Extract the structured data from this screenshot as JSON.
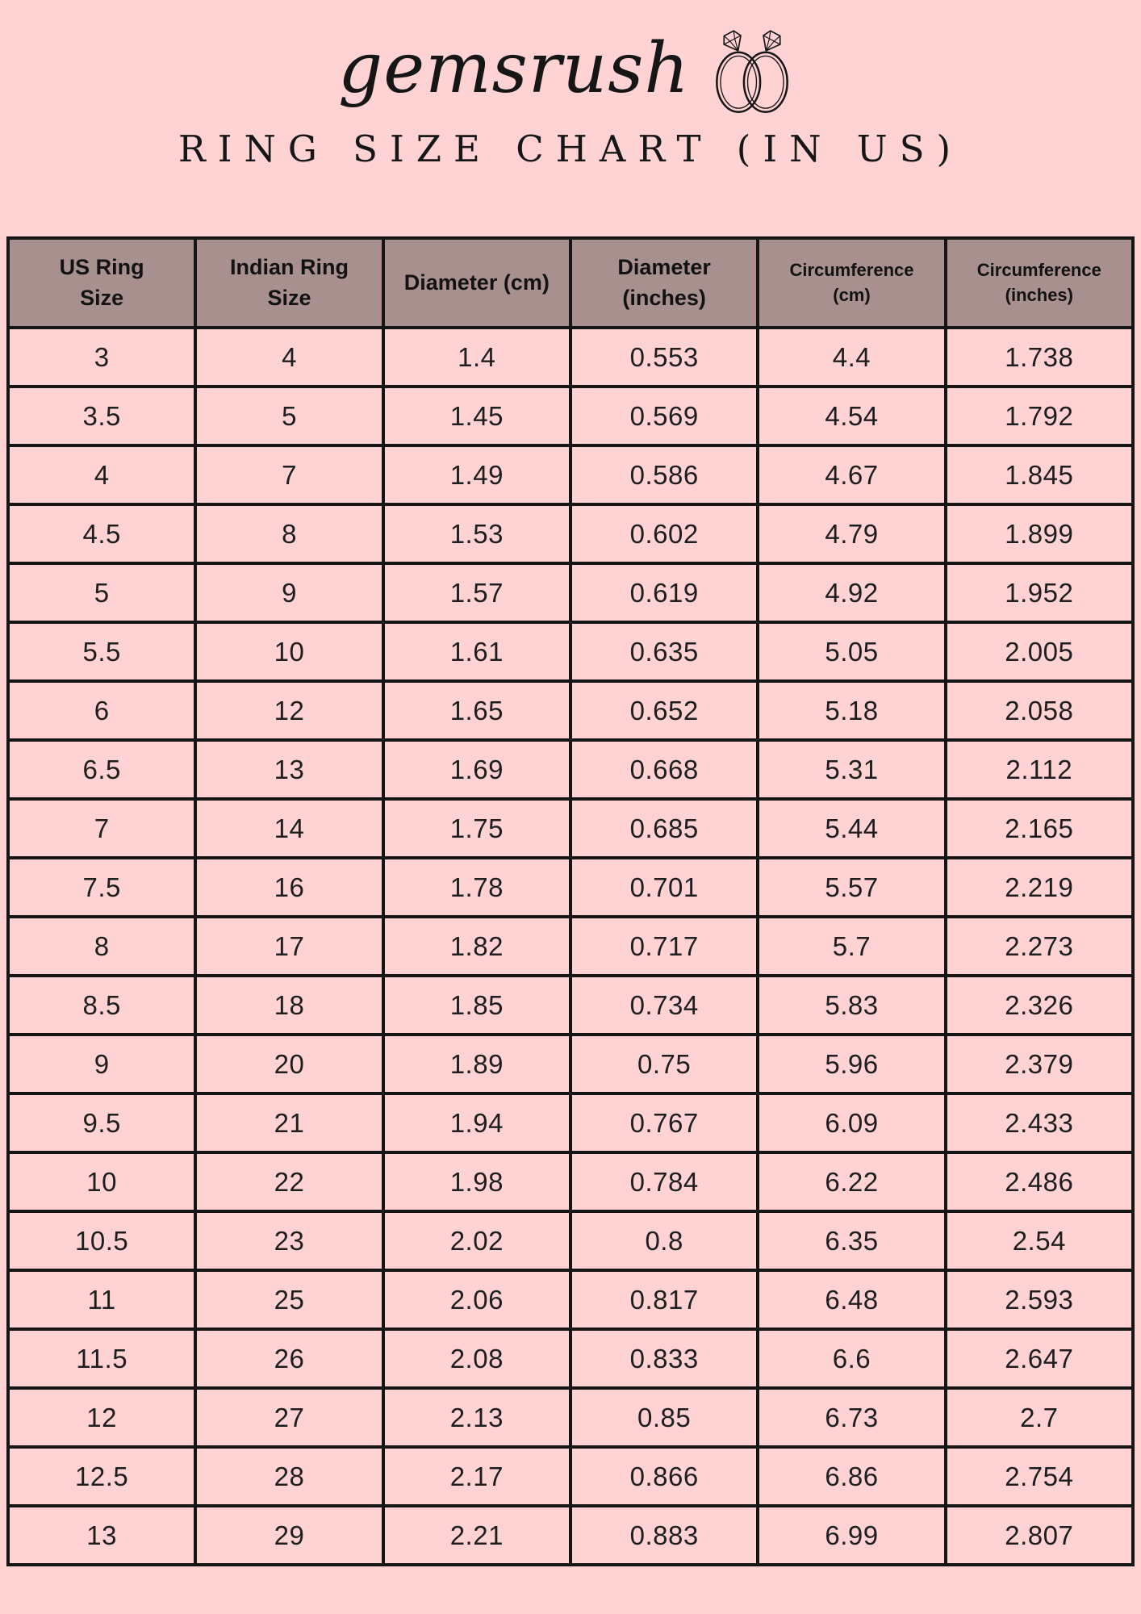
{
  "brand": {
    "logo_text": "gemsrush",
    "icon": "double-rings-icon"
  },
  "title": "RING SIZE CHART (IN US)",
  "colors": {
    "background": "#ffd2d4",
    "header_bg": "#a8908f",
    "cell_bg": "#ffd2d4",
    "border": "#151515",
    "text": "#1c1c1c"
  },
  "chart_data": {
    "type": "table",
    "title": "Ring Size Chart (in US)",
    "columns": [
      {
        "key": "us-ring-size",
        "label": "US Ring Size",
        "lines": [
          "US Ring",
          "Size"
        ],
        "small": false
      },
      {
        "key": "indian-ring-size",
        "label": "Indian Ring Size",
        "lines": [
          "Indian Ring",
          "Size"
        ],
        "small": false
      },
      {
        "key": "diameter-cm",
        "label": "Diameter (cm)",
        "lines": [
          "Diameter (cm)"
        ],
        "small": false
      },
      {
        "key": "diameter-inches",
        "label": "Diameter (inches)",
        "lines": [
          "Diameter",
          "(inches)"
        ],
        "small": false
      },
      {
        "key": "circumference-cm",
        "label": "Circumference (cm)",
        "lines": [
          "Circumference",
          "(cm)"
        ],
        "small": true
      },
      {
        "key": "circumference-inches",
        "label": "Circumference (inches)",
        "lines": [
          "Circumference",
          "(inches)"
        ],
        "small": true
      }
    ],
    "rows": [
      [
        "3",
        "4",
        "1.4",
        "0.553",
        "4.4",
        "1.738"
      ],
      [
        "3.5",
        "5",
        "1.45",
        "0.569",
        "4.54",
        "1.792"
      ],
      [
        "4",
        "7",
        "1.49",
        "0.586",
        "4.67",
        "1.845"
      ],
      [
        "4.5",
        "8",
        "1.53",
        "0.602",
        "4.79",
        "1.899"
      ],
      [
        "5",
        "9",
        "1.57",
        "0.619",
        "4.92",
        "1.952"
      ],
      [
        "5.5",
        "10",
        "1.61",
        "0.635",
        "5.05",
        "2.005"
      ],
      [
        "6",
        "12",
        "1.65",
        "0.652",
        "5.18",
        "2.058"
      ],
      [
        "6.5",
        "13",
        "1.69",
        "0.668",
        "5.31",
        "2.112"
      ],
      [
        "7",
        "14",
        "1.75",
        "0.685",
        "5.44",
        "2.165"
      ],
      [
        "7.5",
        "16",
        "1.78",
        "0.701",
        "5.57",
        "2.219"
      ],
      [
        "8",
        "17",
        "1.82",
        "0.717",
        "5.7",
        "2.273"
      ],
      [
        "8.5",
        "18",
        "1.85",
        "0.734",
        "5.83",
        "2.326"
      ],
      [
        "9",
        "20",
        "1.89",
        "0.75",
        "5.96",
        "2.379"
      ],
      [
        "9.5",
        "21",
        "1.94",
        "0.767",
        "6.09",
        "2.433"
      ],
      [
        "10",
        "22",
        "1.98",
        "0.784",
        "6.22",
        "2.486"
      ],
      [
        "10.5",
        "23",
        "2.02",
        "0.8",
        "6.35",
        "2.54"
      ],
      [
        "11",
        "25",
        "2.06",
        "0.817",
        "6.48",
        "2.593"
      ],
      [
        "11.5",
        "26",
        "2.08",
        "0.833",
        "6.6",
        "2.647"
      ],
      [
        "12",
        "27",
        "2.13",
        "0.85",
        "6.73",
        "2.7"
      ],
      [
        "12.5",
        "28",
        "2.17",
        "0.866",
        "6.86",
        "2.754"
      ],
      [
        "13",
        "29",
        "2.21",
        "0.883",
        "6.99",
        "2.807"
      ]
    ]
  }
}
